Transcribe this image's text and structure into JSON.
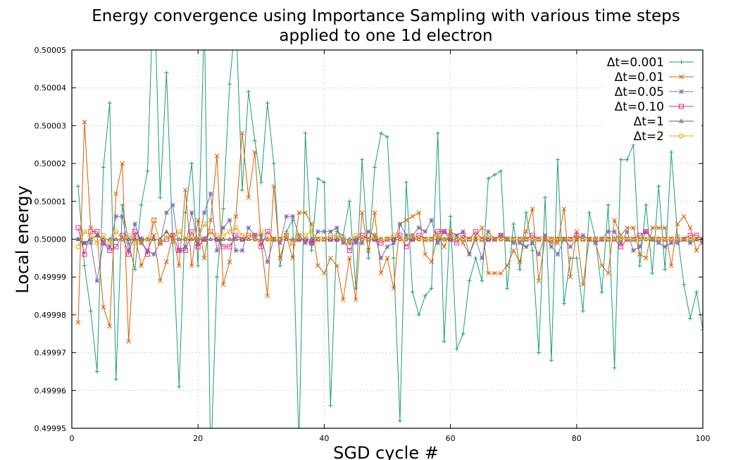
{
  "chart_data": {
    "type": "line",
    "title": "Energy convergence using Importance Sampling with various time steps",
    "subtitle": "applied to one 1d electron",
    "xlabel": "SGD cycle #",
    "ylabel": "Local energy",
    "xlim": [
      0,
      100
    ],
    "ylim": [
      0.49995,
      0.50005
    ],
    "xticks": [
      0,
      20,
      40,
      60,
      80,
      100
    ],
    "xtick_labels": [
      "0",
      "20",
      "40",
      "60",
      "80",
      "100"
    ],
    "yticks": [
      0.49995,
      0.49996,
      0.49997,
      0.49998,
      0.49999,
      0.5,
      0.50001,
      0.50002,
      0.50003,
      0.50004,
      0.50005
    ],
    "ytick_labels": [
      "0.49995",
      "0.49996",
      "0.49997",
      "0.49998",
      "0.49999",
      "0.50000",
      "0.50001",
      "0.50002",
      "0.50003",
      "0.50004",
      "0.50005"
    ],
    "grid": true,
    "legend_position": "top-right",
    "x": [
      1,
      2,
      3,
      4,
      5,
      6,
      7,
      8,
      9,
      10,
      11,
      12,
      13,
      14,
      15,
      16,
      17,
      18,
      19,
      20,
      21,
      22,
      23,
      24,
      25,
      26,
      27,
      28,
      29,
      30,
      31,
      32,
      33,
      34,
      35,
      36,
      37,
      38,
      39,
      40,
      41,
      42,
      43,
      44,
      45,
      46,
      47,
      48,
      49,
      50,
      51,
      52,
      53,
      54,
      55,
      56,
      57,
      58,
      59,
      60,
      61,
      62,
      63,
      64,
      65,
      66,
      67,
      68,
      69,
      70,
      71,
      72,
      73,
      74,
      75,
      76,
      77,
      78,
      79,
      80,
      81,
      82,
      83,
      84,
      85,
      86,
      87,
      88,
      89,
      90,
      91,
      92,
      93,
      94,
      95,
      96,
      97,
      98,
      99,
      100
    ],
    "series": [
      {
        "name": "Δt=0.001",
        "color": "#1b9e77",
        "marker": "plus",
        "values": [
          0.500014,
          0.499993,
          0.499981,
          0.499965,
          0.500019,
          0.500036,
          0.499963,
          0.500009,
          0.499999,
          0.499992,
          0.500009,
          0.500018,
          0.50007,
          0.500011,
          0.500044,
          0.499999,
          0.499961,
          0.500007,
          0.50002,
          0.499993,
          0.50006,
          0.49994,
          0.49999,
          0.500008,
          0.500041,
          0.500059,
          0.500013,
          0.500039,
          0.500026,
          0.500015,
          0.500036,
          0.50002,
          0.499993,
          0.500002,
          0.500005,
          0.499945,
          0.500028,
          0.499997,
          0.500016,
          0.500015,
          0.499956,
          0.500002,
          0.500001,
          0.50001,
          0.499987,
          0.500021,
          0.499995,
          0.500019,
          0.500028,
          0.500027,
          0.499995,
          0.499952,
          0.500015,
          0.499986,
          0.49998,
          0.499985,
          0.499987,
          0.500028,
          0.499973,
          0.500006,
          0.499971,
          0.499975,
          0.499989,
          0.499995,
          0.499989,
          0.500016,
          0.500017,
          0.500018,
          0.499987,
          0.500004,
          0.499992,
          0.500007,
          0.499997,
          0.49997,
          0.500011,
          0.499968,
          0.500021,
          0.499983,
          0.499995,
          0.499995,
          0.499981,
          0.500007,
          0.5,
          0.499986,
          0.500009,
          0.499966,
          0.500021,
          0.500021,
          0.500025,
          0.499993,
          0.500009,
          0.499991,
          0.500014,
          0.499992,
          0.500023,
          0.500001,
          0.499988,
          0.499979,
          0.499986,
          0.499976
        ]
      },
      {
        "name": "Δt=0.01",
        "color": "#d95f02",
        "marker": "cross",
        "values": [
          0.499978,
          0.500031,
          0.500003,
          0.500001,
          0.499982,
          0.499977,
          0.500012,
          0.50002,
          0.499973,
          0.500001,
          0.499993,
          0.499997,
          0.500001,
          0.499989,
          0.499994,
          0.500001,
          0.499993,
          0.500013,
          0.499993,
          0.500005,
          0.499995,
          0.500005,
          0.500022,
          0.499988,
          0.499994,
          0.500006,
          0.500028,
          0.500011,
          0.500023,
          0.499999,
          0.499985,
          0.500014,
          0.499995,
          0.500001,
          0.499995,
          0.500007,
          0.500007,
          0.500004,
          0.499993,
          0.499991,
          0.499995,
          0.499993,
          0.499984,
          0.499995,
          0.499984,
          0.500007,
          0.499997,
          0.500007,
          0.499991,
          0.499995,
          0.499987,
          0.500004,
          0.500005,
          0.500006,
          0.500007,
          0.499996,
          0.499994,
          0.500001,
          0.499998,
          0.500002,
          0.500001,
          0.499999,
          0.499996,
          0.500001,
          0.500003,
          0.499991,
          0.499991,
          0.499991,
          0.499993,
          0.499997,
          0.499994,
          0.500002,
          0.500008,
          0.499989,
          0.5,
          0.499999,
          0.499999,
          0.500008,
          0.49999,
          0.500002,
          0.499988,
          0.5,
          0.499999,
          0.499993,
          0.499991,
          0.500005,
          0.500001,
          0.500003,
          0.500003,
          0.499996,
          0.499995,
          0.500003,
          0.500003,
          0.500003,
          0.499993,
          0.500004,
          0.500006,
          0.500003,
          0.499997,
          0.5
        ]
      },
      {
        "name": "Δt=0.05",
        "color": "#7570b3",
        "marker": "star",
        "values": [
          0.5,
          0.499999,
          0.499999,
          0.499989,
          0.499999,
          0.499998,
          0.500006,
          0.500006,
          0.499997,
          0.500004,
          0.499999,
          0.499997,
          0.499996,
          0.499999,
          0.500007,
          0.500009,
          0.499997,
          0.499998,
          0.500007,
          0.499999,
          0.500007,
          0.500012,
          0.499997,
          0.500003,
          0.500005,
          0.499997,
          0.499997,
          0.500003,
          0.500001,
          0.500001,
          0.499994,
          0.5,
          0.499999,
          0.500006,
          0.500006,
          0.500001,
          0.499999,
          0.499999,
          0.500002,
          0.500002,
          0.500002,
          0.500003,
          0.499999,
          0.499999,
          0.499999,
          0.499999,
          0.500002,
          0.500001,
          0.499995,
          0.499998,
          0.499999,
          0.500004,
          0.500001,
          0.500001,
          0.500003,
          0.500002,
          0.500005,
          0.499999,
          0.500002,
          0.500001,
          0.500001,
          0.500002,
          0.499996,
          0.5,
          0.499995,
          0.500002,
          0.5,
          0.500001,
          0.5,
          0.499999,
          0.499999,
          0.499998,
          0.499999,
          0.499996,
          0.500001,
          0.499998,
          0.499996,
          0.5,
          0.499998,
          0.5,
          0.500001,
          0.5,
          0.499999,
          0.5,
          0.500002,
          0.500002,
          0.499999,
          0.500002,
          0.499997,
          0.499998,
          0.500002,
          0.5,
          0.499999,
          0.499998,
          0.499999,
          0.499999,
          0.5,
          0.499999,
          0.5,
          0.499999
        ]
      },
      {
        "name": "Δt=0.10",
        "color": "#e7298a",
        "marker": "square",
        "values": [
          0.500003,
          0.499996,
          0.500002,
          0.500002,
          0.499999,
          0.499997,
          0.499998,
          0.500001,
          0.499996,
          0.500002,
          0.5,
          0.499996,
          0.500005,
          0.499999,
          0.5,
          0.500001,
          0.499997,
          0.499997,
          0.500002,
          0.499998,
          0.5,
          0.500002,
          0.5,
          0.499998,
          0.499998,
          0.500001,
          0.5,
          0.500001,
          0.500001,
          0.499998,
          0.500002,
          0.5,
          0.5,
          0.500001,
          0.499999,
          0.5,
          0.5,
          0.499999,
          0.5,
          0.5,
          0.5,
          0.5,
          0.5,
          0.499997,
          0.5,
          0.500001,
          0.5,
          0.5,
          0.499999,
          0.5,
          0.5,
          0.500001,
          0.499998,
          0.5,
          0.500001,
          0.5,
          0.5,
          0.500002,
          0.500002,
          0.5,
          0.499999,
          0.500001,
          0.5,
          0.500002,
          0.5,
          0.5,
          0.5,
          0.500001,
          0.5,
          0.5,
          0.5,
          0.5,
          0.500001,
          0.5,
          0.5,
          0.5,
          0.5,
          0.5,
          0.5,
          0.500001,
          0.5,
          0.5,
          0.5,
          0.5,
          0.5,
          0.5,
          0.499998,
          0.5,
          0.5,
          0.500001,
          0.500002,
          0.5,
          0.5,
          0.5,
          0.5,
          0.5,
          0.5,
          0.500001,
          0.500001,
          0.5
        ]
      },
      {
        "name": "Δt=1",
        "color": "#666666",
        "marker": "triangle",
        "values": [
          0.5,
          0.499999,
          0.5,
          0.500001,
          0.5,
          0.5,
          0.5,
          0.5,
          0.5,
          0.5,
          0.5,
          0.5,
          0.5,
          0.5,
          0.500002,
          0.5,
          0.5,
          0.5,
          0.5,
          0.5,
          0.5,
          0.5,
          0.5,
          0.5,
          0.5,
          0.5,
          0.5,
          0.5,
          0.5,
          0.5,
          0.5,
          0.5,
          0.5,
          0.5,
          0.5,
          0.5,
          0.5,
          0.5,
          0.5,
          0.5,
          0.5,
          0.5,
          0.5,
          0.5,
          0.5,
          0.5,
          0.5,
          0.5,
          0.5,
          0.5,
          0.5,
          0.5,
          0.5,
          0.5,
          0.5,
          0.5,
          0.5,
          0.5,
          0.5,
          0.5,
          0.5,
          0.5,
          0.5,
          0.5,
          0.5,
          0.5,
          0.5,
          0.5,
          0.5,
          0.5,
          0.5,
          0.5,
          0.5,
          0.5,
          0.5,
          0.5,
          0.5,
          0.5,
          0.5,
          0.5,
          0.5,
          0.5,
          0.5,
          0.5,
          0.5,
          0.5,
          0.5,
          0.5,
          0.5,
          0.5,
          0.5,
          0.5,
          0.5,
          0.5,
          0.5,
          0.5,
          0.5,
          0.5,
          0.5,
          0.5
        ]
      },
      {
        "name": "Δt=2",
        "color": "#e6ab02",
        "marker": "circle",
        "values": [
          0.499998,
          0.500002,
          0.500001,
          0.499999,
          0.500001,
          0.499999,
          0.500002,
          0.5,
          0.500001,
          0.499999,
          0.499999,
          0.5,
          0.500005,
          0.499999,
          0.500001,
          0.5,
          0.500002,
          0.5,
          0.500001,
          0.5,
          0.500004,
          0.500002,
          0.500001,
          0.500001,
          0.500002,
          0.500003,
          0.500001,
          0.500001,
          0.5,
          0.500002,
          0.5,
          0.5,
          0.5,
          0.500001,
          0.499999,
          0.500001,
          0.500001,
          0.500002,
          0.5,
          0.5,
          0.500001,
          0.500001,
          0.5,
          0.499999,
          0.500001,
          0.5,
          0.5,
          0.500001,
          0.5,
          0.5,
          0.500001,
          0.5,
          0.5,
          0.500001,
          0.5,
          0.5,
          0.5,
          0.500001,
          0.5,
          0.500001,
          0.5,
          0.5,
          0.5,
          0.5,
          0.5,
          0.500001,
          0.5,
          0.5,
          0.5,
          0.5,
          0.5,
          0.5,
          0.5,
          0.5,
          0.5,
          0.5,
          0.5,
          0.5,
          0.5,
          0.5,
          0.5,
          0.5,
          0.5,
          0.5,
          0.5,
          0.5,
          0.5,
          0.5,
          0.5,
          0.5,
          0.5,
          0.5,
          0.5,
          0.5,
          0.5,
          0.5,
          0.5,
          0.5,
          0.5,
          0.5
        ]
      }
    ]
  }
}
